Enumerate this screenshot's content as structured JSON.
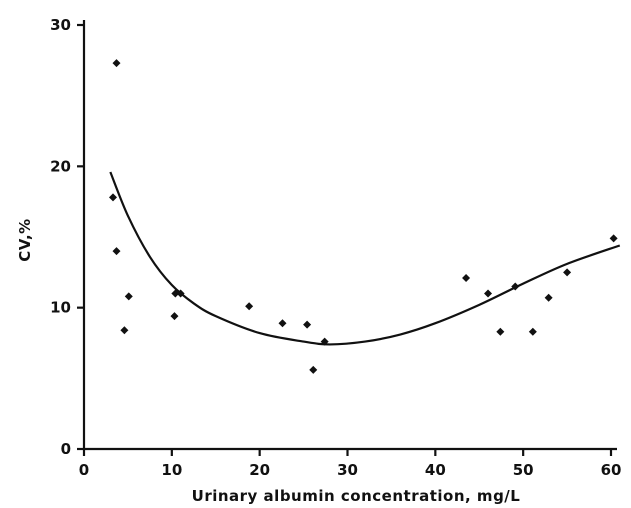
{
  "chart_data": {
    "type": "scatter",
    "title": "",
    "xlabel": "Urinary albumin concentration, mg/L",
    "ylabel": "CV,%",
    "xlim": [
      0,
      60
    ],
    "ylim": [
      0,
      30
    ],
    "x_ticks": [
      0,
      10,
      20,
      30,
      40,
      50,
      60
    ],
    "y_ticks": [
      0,
      10,
      20,
      30
    ],
    "grid": false,
    "legend": "none",
    "series": [
      {
        "kind": "points",
        "marker": "diamond",
        "points": [
          {
            "x": 3.7,
            "y": 27.3
          },
          {
            "x": 3.3,
            "y": 17.8
          },
          {
            "x": 3.7,
            "y": 14.0
          },
          {
            "x": 4.6,
            "y": 8.4
          },
          {
            "x": 5.1,
            "y": 10.8
          },
          {
            "x": 10.3,
            "y": 9.4
          },
          {
            "x": 10.4,
            "y": 11.0
          },
          {
            "x": 11.0,
            "y": 11.0
          },
          {
            "x": 18.8,
            "y": 10.1
          },
          {
            "x": 22.6,
            "y": 8.9
          },
          {
            "x": 25.4,
            "y": 8.8
          },
          {
            "x": 26.1,
            "y": 5.6
          },
          {
            "x": 27.4,
            "y": 7.6
          },
          {
            "x": 43.5,
            "y": 12.1
          },
          {
            "x": 46.0,
            "y": 11.0
          },
          {
            "x": 47.4,
            "y": 8.3
          },
          {
            "x": 49.1,
            "y": 11.5
          },
          {
            "x": 51.1,
            "y": 8.3
          },
          {
            "x": 52.9,
            "y": 10.7
          },
          {
            "x": 55.0,
            "y": 12.5
          },
          {
            "x": 60.3,
            "y": 14.9
          }
        ]
      },
      {
        "kind": "fit-line",
        "points": [
          {
            "x": 3.0,
            "y": 19.6
          },
          {
            "x": 5.0,
            "y": 16.5
          },
          {
            "x": 7.5,
            "y": 13.6
          },
          {
            "x": 10.0,
            "y": 11.6
          },
          {
            "x": 12.5,
            "y": 10.3
          },
          {
            "x": 15.0,
            "y": 9.4
          },
          {
            "x": 20.0,
            "y": 8.2
          },
          {
            "x": 25.0,
            "y": 7.6
          },
          {
            "x": 28.0,
            "y": 7.4
          },
          {
            "x": 32.0,
            "y": 7.6
          },
          {
            "x": 36.0,
            "y": 8.1
          },
          {
            "x": 40.0,
            "y": 8.9
          },
          {
            "x": 45.0,
            "y": 10.2
          },
          {
            "x": 50.0,
            "y": 11.7
          },
          {
            "x": 55.0,
            "y": 13.1
          },
          {
            "x": 61.0,
            "y": 14.4
          }
        ]
      }
    ]
  }
}
